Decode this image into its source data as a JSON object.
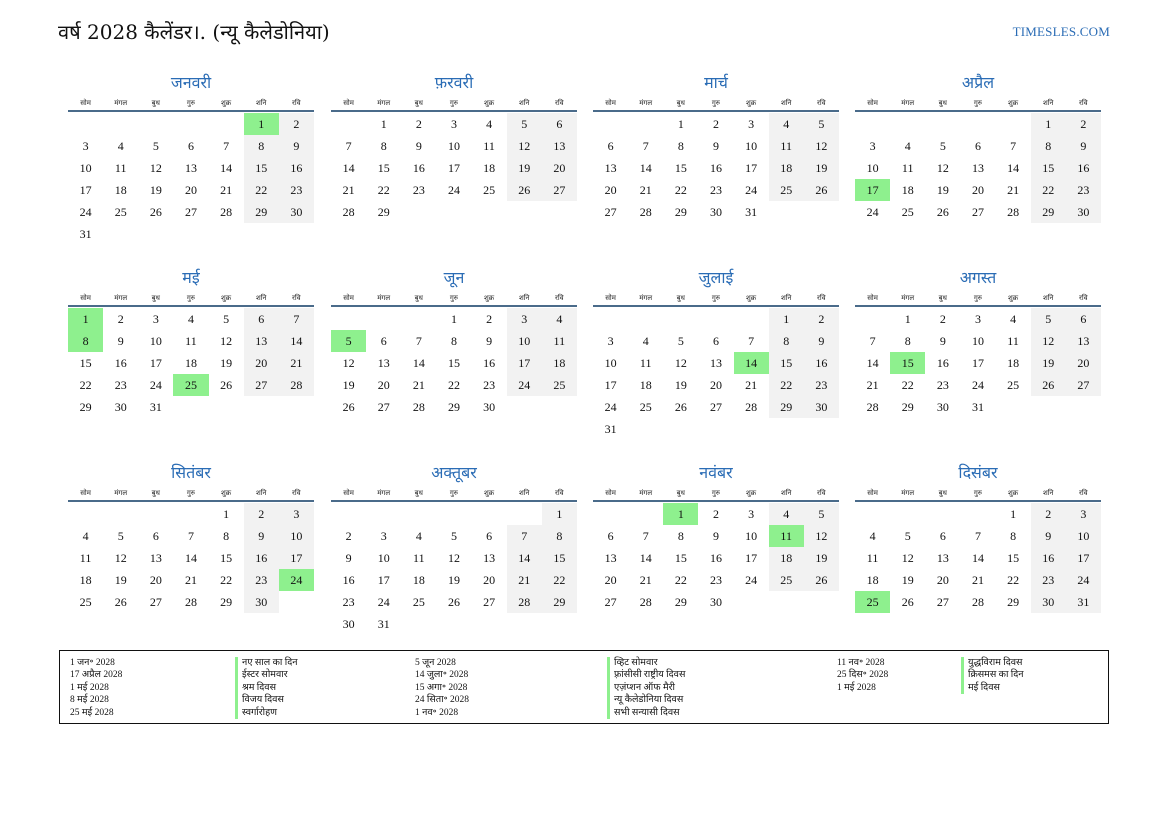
{
  "header": {
    "title": "वर्ष 2028 कैलेंडर।. (न्यू कैलेडोनिया)",
    "site": "TIMESLES.COM"
  },
  "weekday_labels": [
    "सोम",
    "मंगल",
    "बुध",
    "गुरु",
    "शुक्र",
    "शनि",
    "रवि"
  ],
  "months": [
    {
      "name": "जनवरी",
      "start": 5,
      "days": 31,
      "holidays": [
        1
      ]
    },
    {
      "name": "फ़रवरी",
      "start": 1,
      "days": 29,
      "holidays": []
    },
    {
      "name": "मार्च",
      "start": 2,
      "days": 31,
      "holidays": []
    },
    {
      "name": "अप्रैल",
      "start": 5,
      "days": 30,
      "holidays": [
        17
      ]
    },
    {
      "name": "मई",
      "start": 0,
      "days": 31,
      "holidays": [
        1,
        8,
        25
      ]
    },
    {
      "name": "जून",
      "start": 3,
      "days": 30,
      "holidays": [
        5
      ]
    },
    {
      "name": "जुलाई",
      "start": 5,
      "days": 31,
      "holidays": [
        14
      ]
    },
    {
      "name": "अगस्त",
      "start": 1,
      "days": 31,
      "holidays": [
        15
      ]
    },
    {
      "name": "सितंबर",
      "start": 4,
      "days": 30,
      "holidays": [
        24
      ]
    },
    {
      "name": "अक्तूबर",
      "start": 6,
      "days": 31,
      "holidays": []
    },
    {
      "name": "नवंबर",
      "start": 2,
      "days": 30,
      "holidays": [
        1,
        11
      ]
    },
    {
      "name": "दिसंबर",
      "start": 4,
      "days": 31,
      "holidays": [
        25
      ]
    }
  ],
  "holiday_list": [
    [
      {
        "date": "1 जन॰ 2028",
        "name": "नए साल का दिन"
      },
      {
        "date": "17 अप्रैल 2028",
        "name": "ईस्टर सोमवार"
      },
      {
        "date": "1 मई 2028",
        "name": "श्रम दिवस"
      },
      {
        "date": "8 मई 2028",
        "name": "विजय दिवस"
      },
      {
        "date": "25 मई 2028",
        "name": "स्वर्गारोहण"
      }
    ],
    [
      {
        "date": "5 जून 2028",
        "name": "व्हिट सोमवार"
      },
      {
        "date": "14 जुला॰ 2028",
        "name": "फ़्रांसीसी राष्ट्रीय दिवस"
      },
      {
        "date": "15 अगा॰ 2028",
        "name": "एज़ंप्शन ऑफ मैरी"
      },
      {
        "date": "24 सिता॰ 2028",
        "name": "न्यू कैलेडोनिया दिवस"
      },
      {
        "date": "1 नव॰ 2028",
        "name": "सभी सन्यासी दिवस"
      }
    ],
    [
      {
        "date": "11 नव॰ 2028",
        "name": "युद्धविराम दिवस"
      },
      {
        "date": "25 दिस॰ 2028",
        "name": "क्रिसमस का दिन"
      },
      {
        "date": "1 मई 2028",
        "name": "मई दिवस"
      }
    ]
  ]
}
